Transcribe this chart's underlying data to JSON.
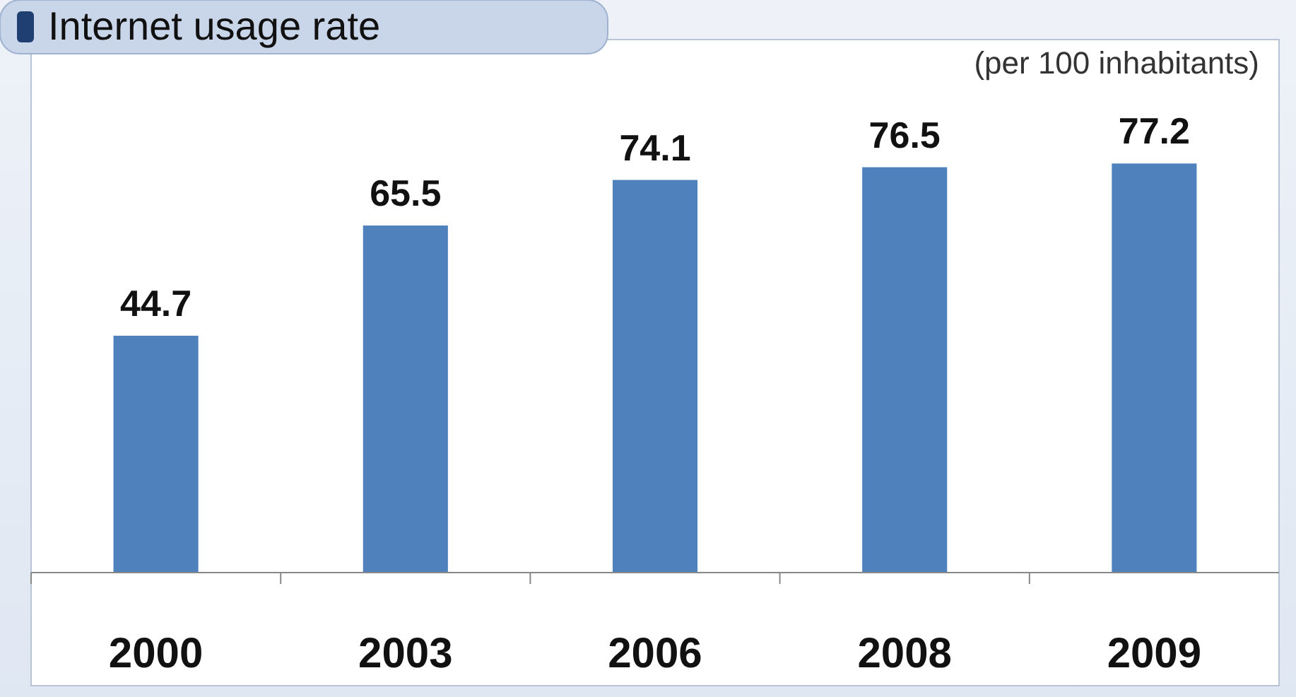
{
  "chart_data": {
    "type": "bar",
    "title": "Internet usage rate",
    "subtitle": "(per 100 inhabitants)",
    "categories": [
      "2000",
      "2003",
      "2006",
      "2008",
      "2009"
    ],
    "values": [
      44.7,
      65.5,
      74.1,
      76.5,
      77.2
    ],
    "color": "#4f81bd",
    "data_labels": true
  }
}
